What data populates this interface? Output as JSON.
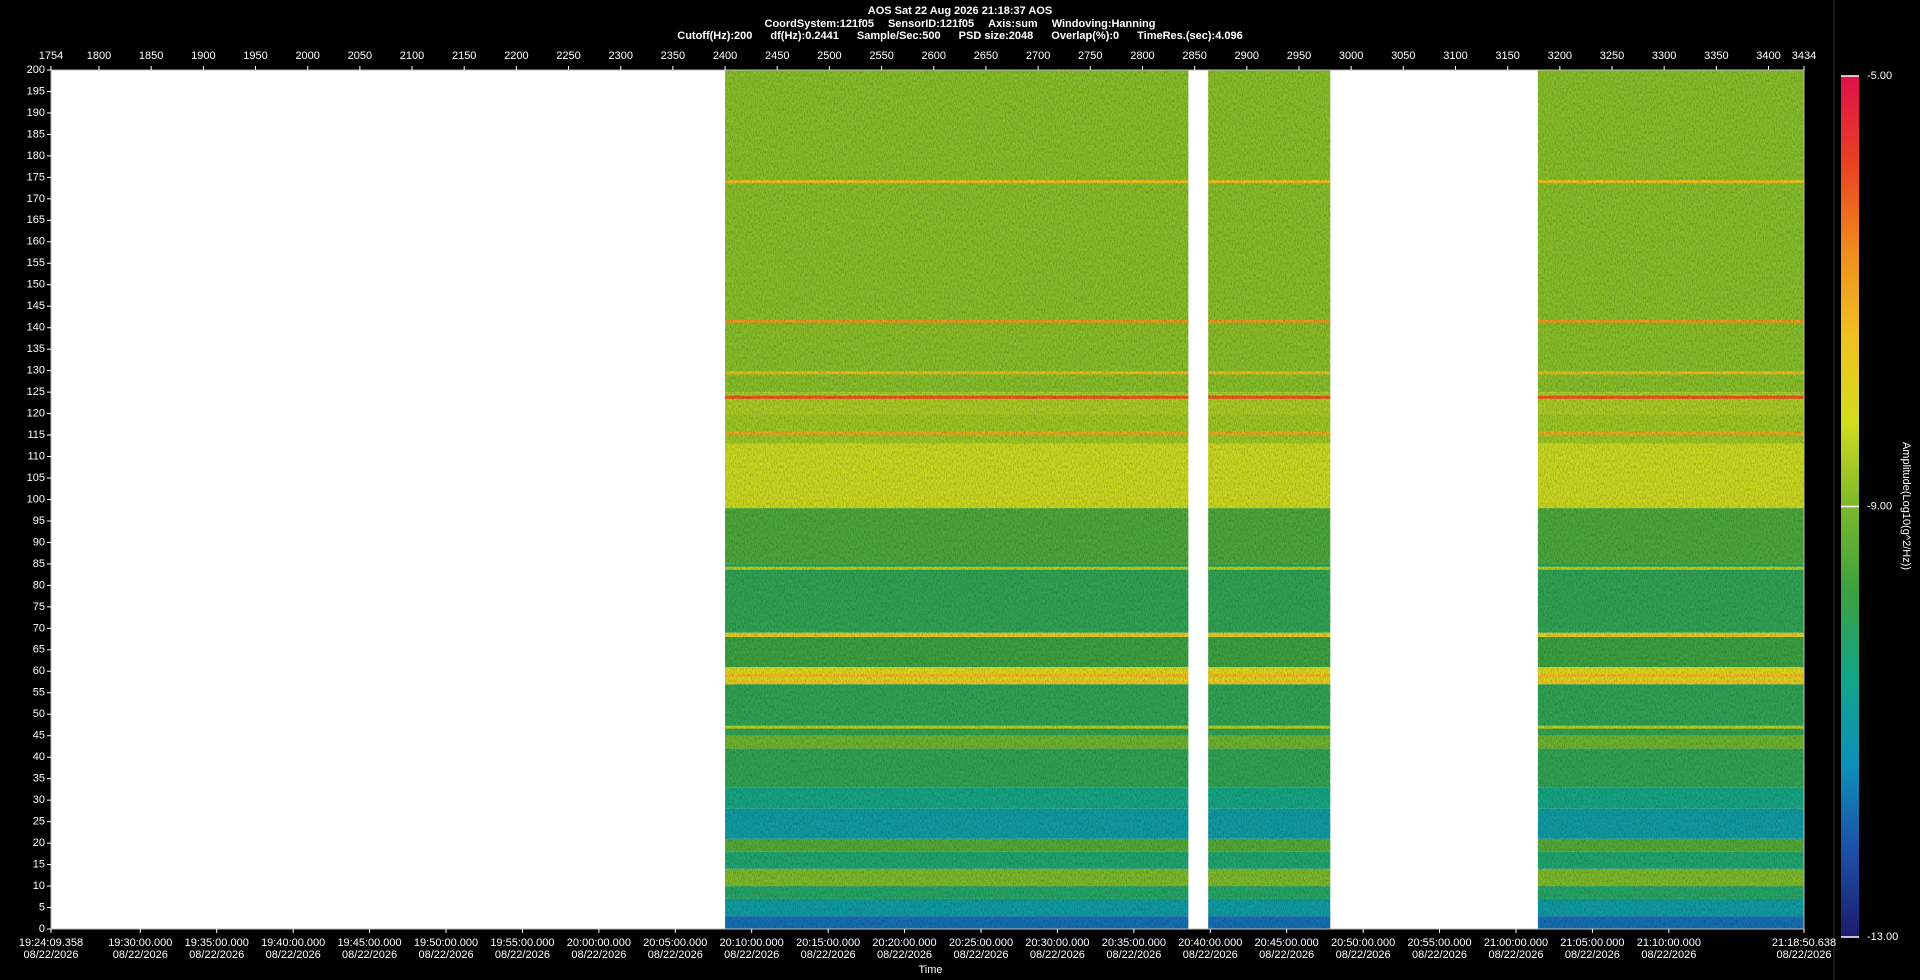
{
  "chart_data": {
    "type": "spectrogram",
    "title": "AOS  Sat 22 Aug 2026 21:18:37  AOS",
    "info_lines": [
      [
        "CoordSystem:121f05",
        "SensorID:121f05",
        "Axis:sum",
        "Windoving:Hanning"
      ],
      [
        "Cutoff(Hz):200",
        "df(Hz):0.2441",
        "Sample/Sec:500",
        "PSD size:2048",
        "Overlap(%):0",
        "TimeRes.(sec):4.096"
      ]
    ],
    "xlim": [
      1754,
      3434
    ],
    "xticks": [
      1754,
      1800,
      1850,
      1900,
      1950,
      2000,
      2050,
      2100,
      2150,
      2200,
      2250,
      2300,
      2350,
      2400,
      2450,
      2500,
      2550,
      2600,
      2650,
      2700,
      2750,
      2800,
      2850,
      2900,
      2950,
      3000,
      3050,
      3100,
      3150,
      3200,
      3250,
      3300,
      3350,
      3400,
      3434
    ],
    "x2ticks": [
      {
        "value": 1754,
        "label": "19:24:09.358"
      },
      {
        "value": 1839.6,
        "label": "19:30:00.000"
      },
      {
        "value": 1912.8,
        "label": "19:35:00.000"
      },
      {
        "value": 1986.1,
        "label": "19:40:00.000"
      },
      {
        "value": 2059.3,
        "label": "19:45:00.000"
      },
      {
        "value": 2132.6,
        "label": "19:50:00.000"
      },
      {
        "value": 2205.8,
        "label": "19:55:00.000"
      },
      {
        "value": 2279.1,
        "label": "20:00:00.000"
      },
      {
        "value": 2352.3,
        "label": "20:05:00.000"
      },
      {
        "value": 2425.5,
        "label": "20:10:00.000"
      },
      {
        "value": 2498.8,
        "label": "20:15:00.000"
      },
      {
        "value": 2572.0,
        "label": "20:20:00.000"
      },
      {
        "value": 2645.3,
        "label": "20:25:00.000"
      },
      {
        "value": 2718.5,
        "label": "20:30:00.000"
      },
      {
        "value": 2791.8,
        "label": "20:35:00.000"
      },
      {
        "value": 2865.0,
        "label": "20:40:00.000"
      },
      {
        "value": 2938.2,
        "label": "20:45:00.000"
      },
      {
        "value": 3011.5,
        "label": "20:50:00.000"
      },
      {
        "value": 3084.7,
        "label": "20:55:00.000"
      },
      {
        "value": 3158.0,
        "label": "21:00:00.000"
      },
      {
        "value": 3231.2,
        "label": "21:05:00.000"
      },
      {
        "value": 3304.5,
        "label": "21:10:00.000"
      },
      {
        "value": 3434,
        "label": "21:18:50.638"
      }
    ],
    "x2tick_dates": [
      "08/22/2026",
      "08/22/2026",
      "08/22/2026",
      "08/22/2026",
      "08/22/2026",
      "08/22/2026",
      "08/22/2026",
      "08/22/2026",
      "08/22/2026",
      "08/22/2026",
      "08/22/2026",
      "08/22/2026",
      "08/22/2026",
      "08/22/2026",
      "08/22/2026",
      "08/22/2026",
      "08/22/2026",
      "08/22/2026",
      "08/22/2026",
      "08/22/2026",
      "08/22/2026",
      "08/22/2026",
      "08/22/2026"
    ],
    "xlabel": "Time",
    "ylim": [
      0,
      200
    ],
    "yticks": [
      0,
      5,
      10,
      15,
      20,
      25,
      30,
      35,
      40,
      45,
      50,
      55,
      60,
      65,
      70,
      75,
      80,
      85,
      90,
      95,
      100,
      105,
      110,
      115,
      120,
      125,
      130,
      135,
      140,
      145,
      150,
      155,
      160,
      165,
      170,
      175,
      180,
      185,
      190,
      195,
      200
    ],
    "zlim": [
      -13,
      -5
    ],
    "zticks": [
      {
        "value": -5,
        "label": "-5.00"
      },
      {
        "value": -9,
        "label": "-9.00"
      },
      {
        "value": -13,
        "label": "-13.00"
      }
    ],
    "zlabel": "Amplitude(Log10(g^2/Hz))",
    "colormap": [
      "#1c1c6b",
      "#1d4fa8",
      "#0e8fb8",
      "#12a58a",
      "#3aa040",
      "#7cb82a",
      "#d4dc1e",
      "#f0c020",
      "#f08a1e",
      "#e84020",
      "#e0104c"
    ],
    "segments": [
      [
        2400,
        2844
      ],
      [
        2863,
        2980
      ],
      [
        3179,
        3434
      ]
    ],
    "band_edges": [
      0,
      3,
      7,
      10,
      14,
      18,
      21,
      28,
      33,
      42,
      45,
      57,
      61,
      68,
      69,
      85,
      98,
      113,
      120,
      125,
      200
    ],
    "band_values": [
      -11.8,
      -11.0,
      -10.2,
      -9.0,
      -10.3,
      -9.5,
      -11.0,
      -10.5,
      -10.0,
      -9.2,
      -10.0,
      -8.0,
      -9.8,
      -8.0,
      -10.0,
      -9.6,
      -8.3,
      -8.7,
      -8.6,
      -8.9
    ],
    "tones": {
      "frequencies": [
        174,
        141.5,
        129.5,
        123.8,
        115.5,
        84,
        68.5,
        59,
        57.5,
        47
      ],
      "values": [
        -7.5,
        -6.8,
        -7.3,
        -6.0,
        -7.0,
        -8.5,
        -7.5,
        -7.3,
        -7.5,
        -8.5
      ]
    }
  }
}
